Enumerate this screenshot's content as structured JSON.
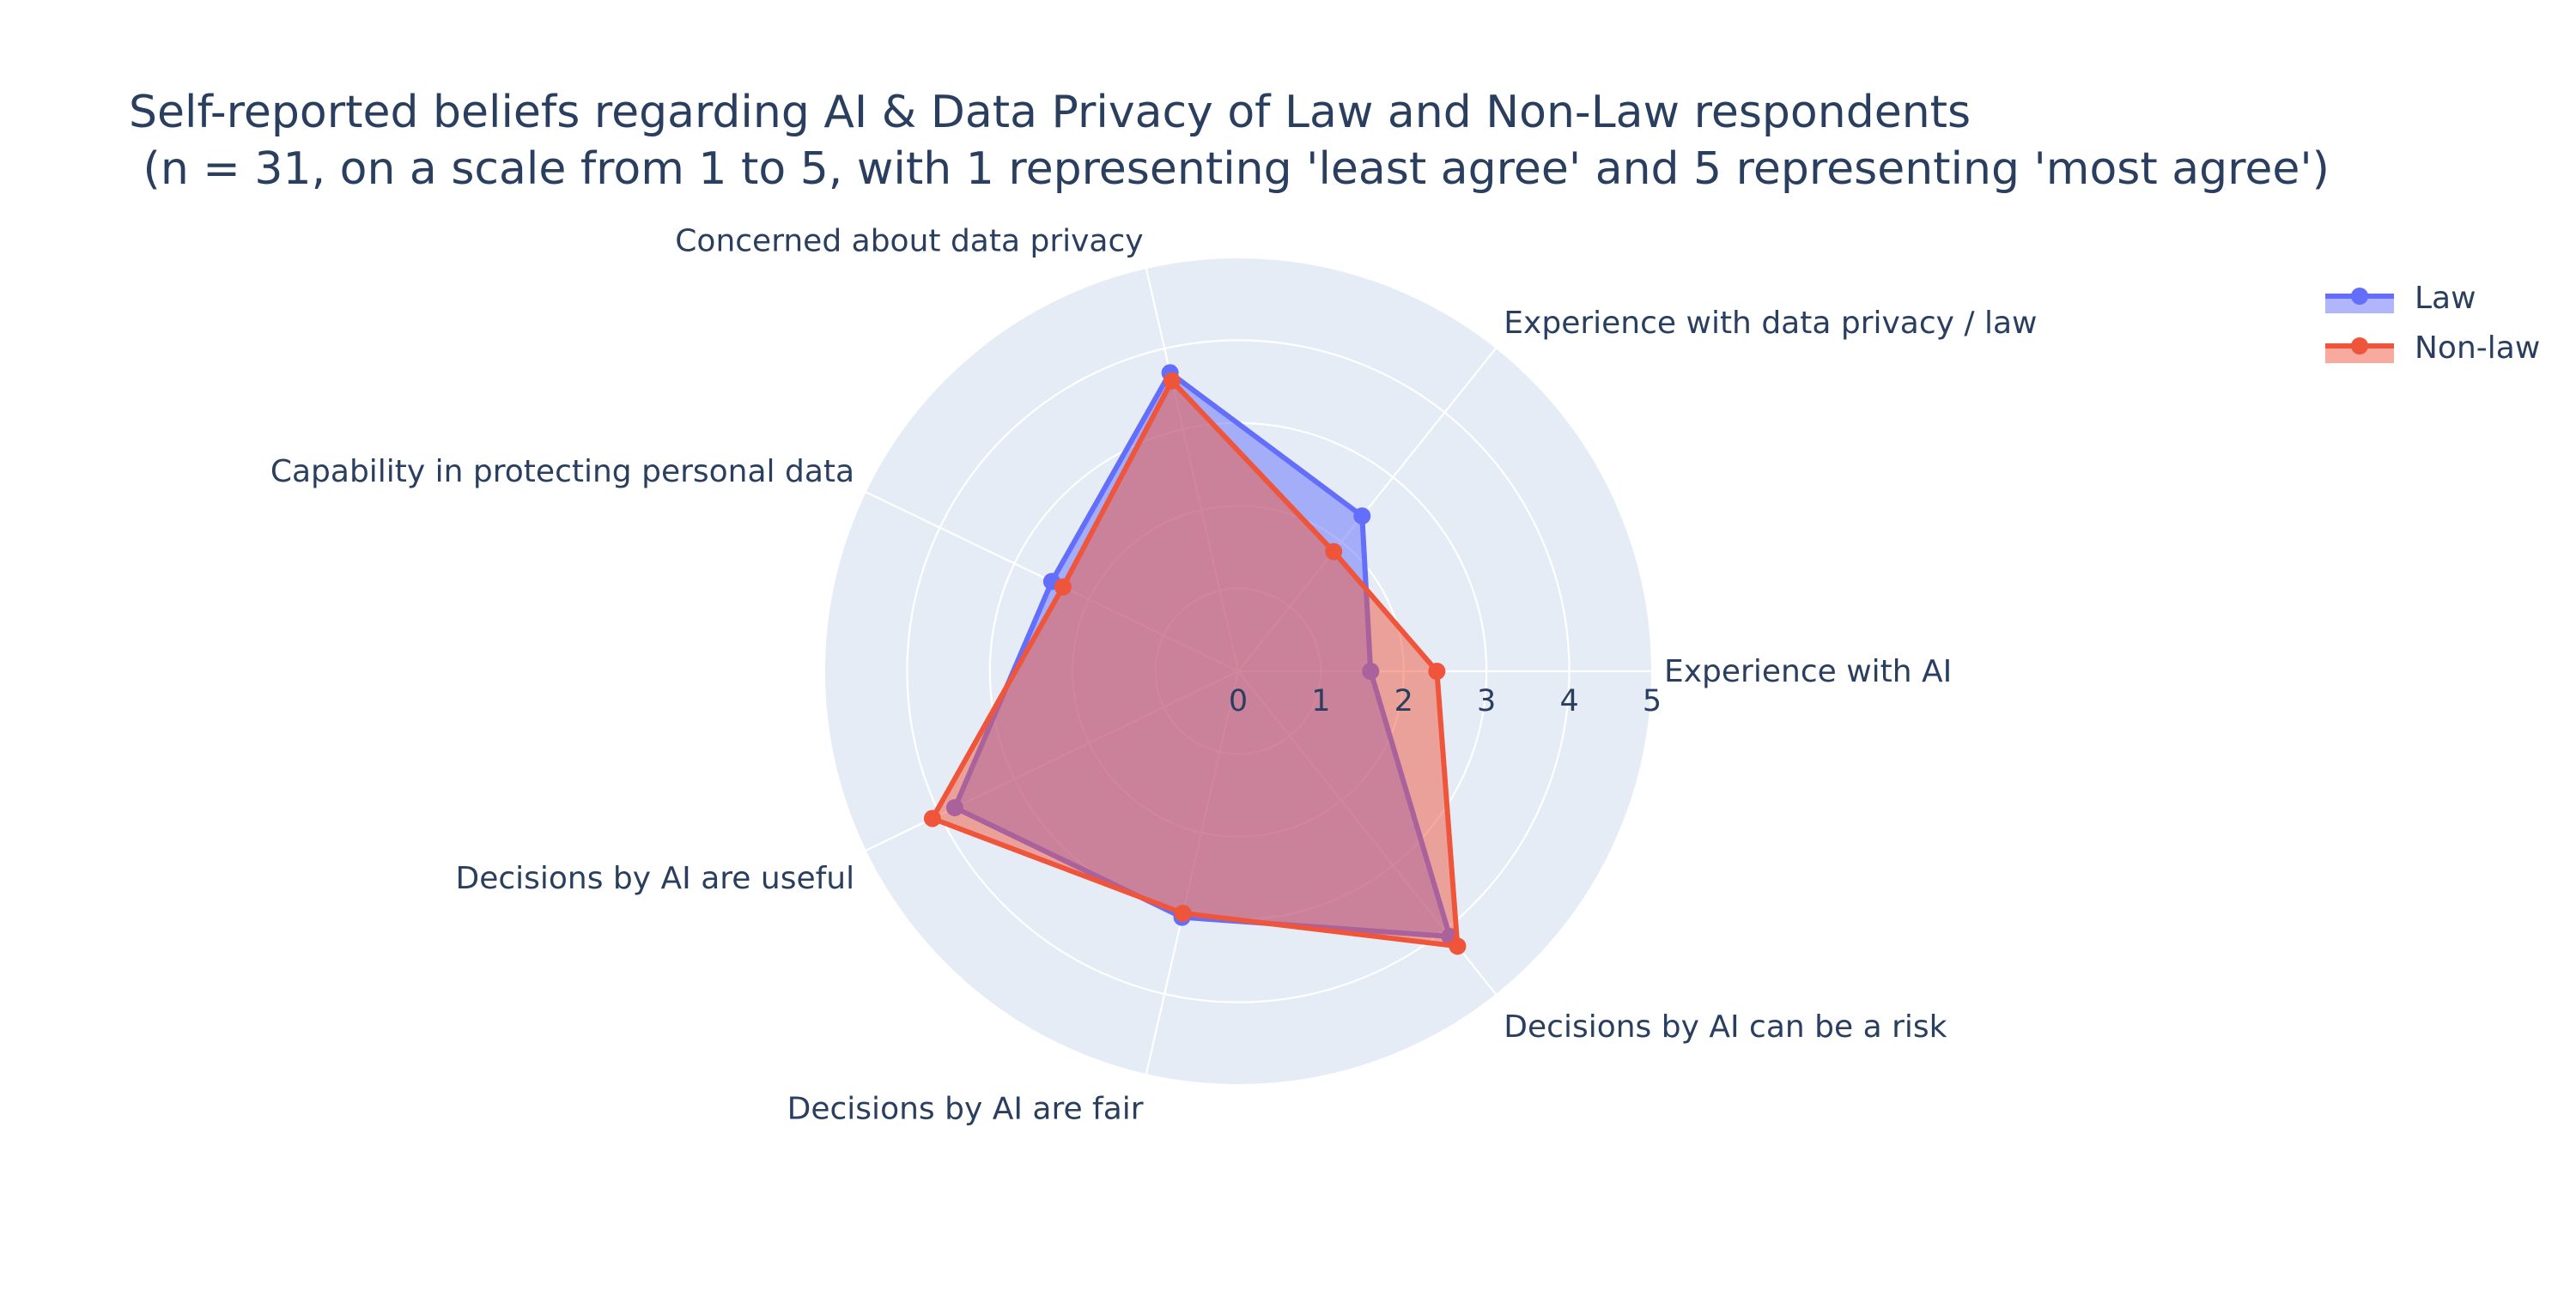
{
  "chart_data": {
    "type": "radar",
    "title": "Self-reported beliefs regarding AI & Data Privacy of Law and Non-Law respondents",
    "subtitle": " (n = 31, on a scale from 1 to 5, with 1 representing 'least agree' and 5 representing 'most agree')",
    "categories": [
      "Experience with AI",
      "Experience with data privacy / law",
      "Concerned about data privacy",
      "Capability in protecting personal data",
      "Decisions by AI are useful",
      "Decisions by AI are fair",
      "Decisions by AI can be a risk"
    ],
    "radial_range": [
      0,
      5
    ],
    "radial_ticks": [
      "0",
      "1",
      "2",
      "3",
      "4",
      "5"
    ],
    "angle_start_deg": 0,
    "direction": "counterclockwise",
    "series": [
      {
        "name": "Law",
        "values": [
          1.6,
          2.4,
          3.7,
          2.5,
          3.8,
          3.05,
          4.1
        ],
        "color": "#636efa",
        "fill_color": "rgba(99,110,250,0.5)"
      },
      {
        "name": "Non-law",
        "values": [
          2.4,
          1.85,
          3.6,
          2.35,
          4.1,
          3.0,
          4.25
        ],
        "color": "#ef553b",
        "fill_color": "rgba(239,85,59,0.5)"
      }
    ],
    "legend": {
      "placement": "top-right",
      "entries": [
        "Law",
        "Non-law"
      ]
    },
    "colors": {
      "polar_background": "#e5ecf6",
      "grid": "#ffffff",
      "text": "#2a3f5f"
    }
  }
}
